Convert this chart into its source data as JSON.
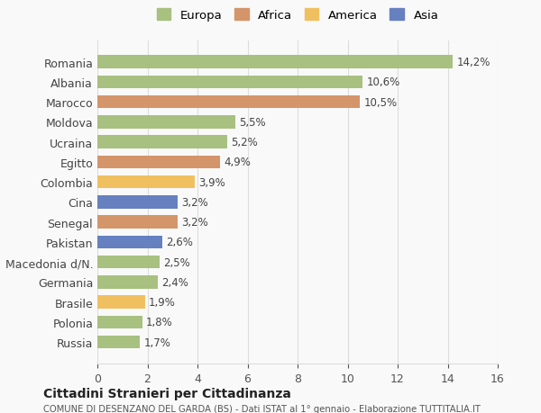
{
  "categories": [
    "Russia",
    "Polonia",
    "Brasile",
    "Germania",
    "Macedonia d/N.",
    "Pakistan",
    "Senegal",
    "Cina",
    "Colombia",
    "Egitto",
    "Ucraina",
    "Moldova",
    "Marocco",
    "Albania",
    "Romania"
  ],
  "values": [
    1.7,
    1.8,
    1.9,
    2.4,
    2.5,
    2.6,
    3.2,
    3.2,
    3.9,
    4.9,
    5.2,
    5.5,
    10.5,
    10.6,
    14.2
  ],
  "labels": [
    "1,7%",
    "1,8%",
    "1,9%",
    "2,4%",
    "2,5%",
    "2,6%",
    "3,2%",
    "3,2%",
    "3,9%",
    "4,9%",
    "5,2%",
    "5,5%",
    "10,5%",
    "10,6%",
    "14,2%"
  ],
  "colors": [
    "#a8c080",
    "#a8c080",
    "#f0c060",
    "#a8c080",
    "#a8c080",
    "#6680c0",
    "#d4956a",
    "#6680c0",
    "#f0c060",
    "#d4956a",
    "#a8c080",
    "#a8c080",
    "#d4956a",
    "#a8c080",
    "#a8c080"
  ],
  "legend_labels": [
    "Europa",
    "Africa",
    "America",
    "Asia"
  ],
  "legend_colors": [
    "#a8c080",
    "#d4956a",
    "#f0c060",
    "#6680c0"
  ],
  "xlim": [
    0,
    16
  ],
  "xticks": [
    0,
    2,
    4,
    6,
    8,
    10,
    12,
    14,
    16
  ],
  "title": "Cittadini Stranieri per Cittadinanza",
  "subtitle": "COMUNE DI DESENZANO DEL GARDA (BS) - Dati ISTAT al 1° gennaio - Elaborazione TUTTITALIA.IT",
  "background_color": "#f9f9f9",
  "grid_color": "#dddddd",
  "bar_height": 0.65
}
